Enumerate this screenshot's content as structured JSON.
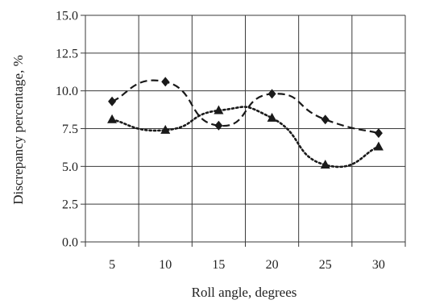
{
  "chart_data": {
    "type": "scatter",
    "title": "",
    "xlabel": "Roll angle, degrees",
    "ylabel": "Discrepancy percentage, %",
    "xlim": [
      2.5,
      32.5
    ],
    "ylim": [
      0,
      15
    ],
    "x_ticks": [
      "5",
      "10",
      "15",
      "20",
      "25",
      "30"
    ],
    "y_ticks": [
      "0.0",
      "2.5",
      "5.0",
      "7.5",
      "10.0",
      "12.5",
      "15.0"
    ],
    "grid": true,
    "legend": "none",
    "series": [
      {
        "marker": "diamond",
        "line_style": "dashed",
        "color": "#1a1a1a",
        "x": [
          5,
          10,
          15,
          20,
          25,
          30
        ],
        "values": [
          9.3,
          10.6,
          7.7,
          9.8,
          8.1,
          7.2
        ]
      },
      {
        "marker": "triangle",
        "line_style": "dotted",
        "color": "#1a1a1a",
        "x": [
          5,
          10,
          15,
          20,
          25,
          30
        ],
        "values": [
          8.1,
          7.4,
          8.7,
          8.2,
          5.1,
          6.3
        ]
      }
    ]
  }
}
